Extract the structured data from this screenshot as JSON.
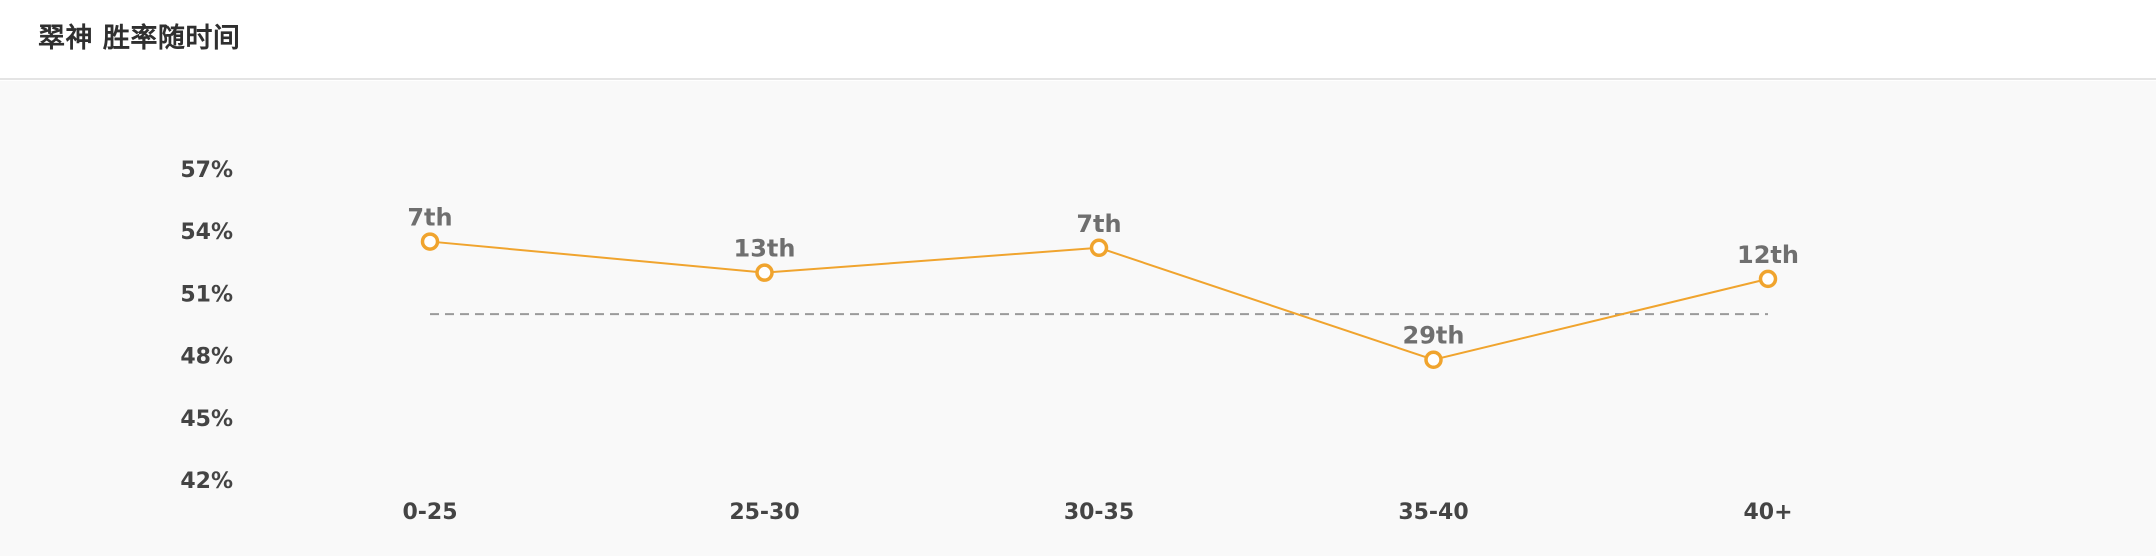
{
  "header": {
    "title": "翠神 胜率随时间"
  },
  "colors": {
    "line": "#f0a42e",
    "average_line": "#9a9a9a",
    "tick_text": "#444444",
    "rank_text": "#6f6f6f",
    "chart_background": "#f9f9f9"
  },
  "chart_data": {
    "type": "line",
    "title": "翠神 胜率随时间",
    "categories": [
      "0-25",
      "25-30",
      "30-35",
      "35-40",
      "40+"
    ],
    "series": [
      {
        "values": [
          53.5,
          52.0,
          53.2,
          47.8,
          51.7
        ],
        "labels": [
          "7th",
          "13th",
          "7th",
          "29th",
          "12th"
        ]
      }
    ],
    "reference_line": 50,
    "y_ticks": [
      "57%",
      "54%",
      "51%",
      "48%",
      "45%",
      "42%"
    ],
    "y_tick_values": [
      57,
      54,
      51,
      48,
      45,
      42
    ],
    "ylim": [
      42,
      57
    ],
    "grid": false,
    "legend": "none"
  }
}
